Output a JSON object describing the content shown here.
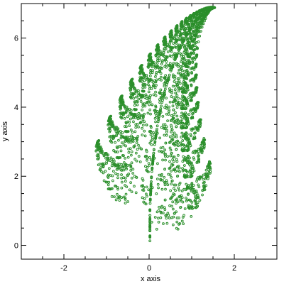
{
  "chart_data": {
    "type": "scatter",
    "title": "",
    "xlabel": "x axis",
    "ylabel": "y axis",
    "xlim": [
      -3,
      3
    ],
    "ylim": [
      -0.4,
      7
    ],
    "xticks": [
      -2,
      0,
      2
    ],
    "yticks": [
      0,
      2,
      4,
      6
    ],
    "xtick_labels": [
      "-2",
      "0",
      "2"
    ],
    "ytick_labels": [
      "0",
      "2",
      "4",
      "6"
    ],
    "grid": false,
    "marker": "open-circle",
    "color": "#2b8f2b",
    "series": [
      {
        "description_points": "Barnsley fern IFS points (approx. 2500 samples)",
        "points": []
      }
    ]
  }
}
